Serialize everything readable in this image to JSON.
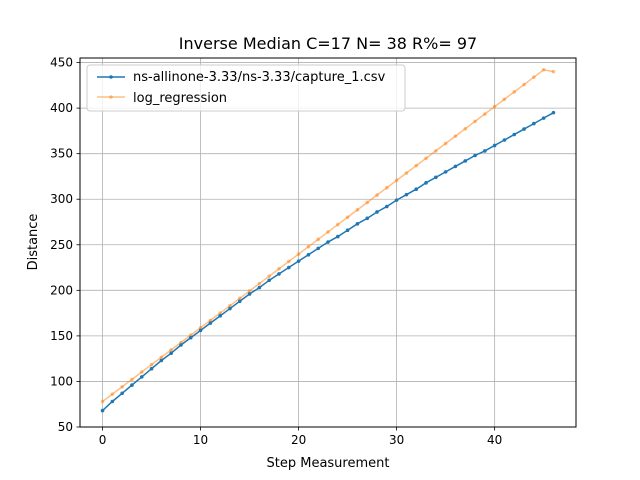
{
  "chart_data": {
    "type": "line",
    "title": "Inverse Median C=17 N= 38 R%= 97",
    "xlabel": "Step Measurement",
    "ylabel": "Distance",
    "xlim": [
      -2.3,
      48.3
    ],
    "ylim": [
      50,
      455
    ],
    "xticks": [
      0,
      10,
      20,
      30,
      40
    ],
    "yticks": [
      50,
      100,
      150,
      200,
      250,
      300,
      350,
      400,
      450
    ],
    "grid": true,
    "legend_position": "top-left",
    "x": [
      0,
      1,
      2,
      3,
      4,
      5,
      6,
      7,
      8,
      9,
      10,
      11,
      12,
      13,
      14,
      15,
      16,
      17,
      18,
      19,
      20,
      21,
      22,
      23,
      24,
      25,
      26,
      27,
      28,
      29,
      30,
      31,
      32,
      33,
      34,
      35,
      36,
      37,
      38,
      39,
      40,
      41,
      42,
      43,
      44,
      45,
      46
    ],
    "series": [
      {
        "name": "ns-allinone-3.33/ns-3.33/capture_1.csv",
        "color": "#1f77b4",
        "values": [
          68,
          78,
          87,
          96,
          105,
          114,
          123,
          131,
          140,
          148,
          156,
          164,
          172,
          180,
          188,
          196,
          203,
          211,
          218,
          225,
          232,
          239,
          246,
          253,
          259,
          266,
          273,
          279,
          286,
          292,
          299,
          305,
          311,
          318,
          324,
          330,
          336,
          342,
          348,
          353,
          359,
          365,
          371,
          377,
          383,
          389,
          395
        ]
      },
      {
        "name": "log_regression",
        "color": "#ff7f0e",
        "values": [
          78,
          86.09,
          94.18,
          102.27,
          110.36,
          118.45,
          126.54,
          134.63,
          142.72,
          150.81,
          158.9,
          166.99,
          175.08,
          183.17,
          191.26,
          199.35,
          207.44,
          215.53,
          223.62,
          231.71,
          239.8,
          247.89,
          255.98,
          264.07,
          272.16,
          280.25,
          288.34,
          296.43,
          304.52,
          312.61,
          320.7,
          328.79,
          336.88,
          344.97,
          353.06,
          361.15,
          369.24,
          377.33,
          385.42,
          393.51,
          401.6,
          409.69,
          417.78,
          425.87,
          433.96,
          442.05,
          440
        ]
      }
    ]
  }
}
